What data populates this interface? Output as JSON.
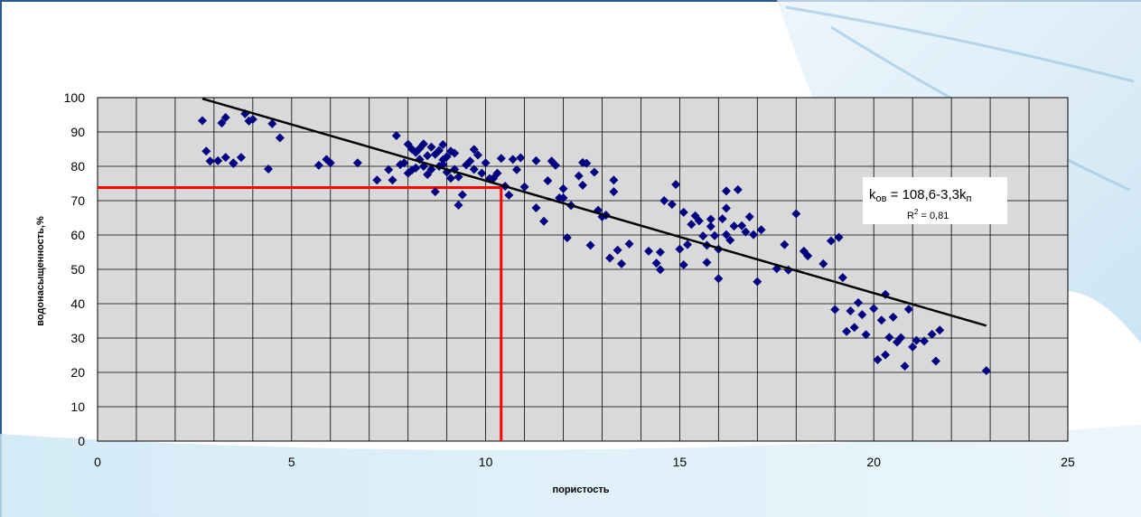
{
  "colors": {
    "plot_bg": "#d9d9d9",
    "grid": "#000000",
    "points": "#000080",
    "trend": "#000000",
    "marker_line": "#ff0000"
  },
  "chart_data": {
    "type": "scatter",
    "xlabel": "пористость",
    "ylabel": "водонасыщенность,%",
    "xlim": [
      0,
      25
    ],
    "ylim": [
      0,
      100
    ],
    "x_ticks": [
      "0",
      "5",
      "10",
      "15",
      "20",
      "25"
    ],
    "y_ticks": [
      "0",
      "10",
      "20",
      "30",
      "40",
      "50",
      "60",
      "70",
      "80",
      "90",
      "100"
    ],
    "grid": true,
    "legend": "none",
    "annotation": {
      "equation_label_prefix": "k",
      "equation_label_sub1": "ов",
      "equation_label_mid": " = 108,6-3,3k",
      "equation_label_sub2": "п",
      "r2_prefix": "R",
      "r2_sup": "2",
      "r2_suffix": " = 0,81"
    },
    "trendline": {
      "x": [
        2.7,
        22.9
      ],
      "y": [
        99.7,
        33.6
      ],
      "slope": -3.3,
      "intercept": 108.6
    },
    "marker_lines": {
      "horizontal": {
        "y": 73.8,
        "x_from": 0,
        "x_to": 10.4
      },
      "vertical": {
        "x": 10.4,
        "y_from": 73.8,
        "y_to": 0
      }
    },
    "series": [
      {
        "x": [
          2.7,
          2.8,
          2.9,
          3.1,
          3.2,
          3.3,
          3.3,
          3.5,
          3.5,
          3.7,
          3.8,
          3.9,
          4.0,
          4.4,
          4.5,
          4.7,
          5.7,
          5.9,
          6.0,
          6.7,
          7.2,
          7.5,
          7.6,
          7.7,
          7.8,
          7.9,
          8.0,
          8.0,
          8.1,
          8.1,
          8.2,
          8.2,
          8.3,
          8.3,
          8.4,
          8.4,
          8.5,
          8.5,
          8.6,
          8.6,
          8.7,
          8.7,
          8.8,
          8.8,
          8.9,
          8.9,
          9.0,
          9.0,
          9.1,
          9.1,
          9.2,
          9.2,
          9.3,
          9.4,
          9.5,
          9.6,
          9.7,
          9.8,
          9.9,
          10.0,
          10.2,
          10.3,
          10.4,
          10.5,
          10.6,
          10.7,
          10.8,
          10.9,
          11.0,
          11.3,
          11.5,
          11.6,
          11.7,
          11.9,
          12.0,
          12.1,
          12.2,
          12.4,
          12.5,
          12.6,
          12.7,
          12.8,
          12.9,
          13.0,
          13.1,
          13.2,
          13.3,
          13.4,
          13.5,
          13.7,
          14.2,
          14.4,
          14.5,
          14.6,
          14.8,
          14.9,
          15.0,
          15.1,
          15.2,
          15.3,
          15.4,
          15.5,
          15.6,
          15.7,
          15.7,
          15.8,
          15.9,
          16.0,
          16.1,
          16.2,
          16.2,
          16.3,
          16.4,
          16.5,
          16.7,
          16.8,
          16.9,
          17.0,
          17.5,
          17.7,
          17.8,
          18.0,
          18.2,
          18.7,
          18.9,
          19.0,
          19.2,
          19.3,
          19.4,
          19.5,
          19.6,
          19.7,
          19.8,
          20.0,
          20.1,
          20.2,
          20.3,
          20.4,
          20.5,
          20.6,
          20.7,
          20.8,
          20.9,
          21.0,
          21.1,
          21.3,
          21.5,
          21.6,
          21.7,
          22.9,
          15.8,
          16.2,
          12.0,
          13.3,
          8.9,
          10.1,
          11.3,
          9.3,
          14.5,
          16.0,
          19.1,
          20.3,
          17.1,
          15.1,
          12.5,
          18.3,
          16.6,
          9.7,
          11.8
        ],
        "y": [
          93.3,
          84.4,
          81.5,
          81.6,
          92.6,
          82.6,
          94.2,
          81.0,
          80.8,
          82.6,
          95.3,
          93.2,
          93.7,
          79.2,
          92.4,
          88.3,
          80.3,
          82.0,
          81.0,
          81.0,
          76.0,
          79.0,
          76.0,
          88.9,
          80.5,
          81.0,
          78.0,
          86.4,
          85.0,
          78.9,
          84.0,
          79.5,
          85.2,
          82.0,
          86.5,
          80.0,
          83.1,
          77.6,
          85.6,
          79.1,
          83.5,
          72.6,
          84.6,
          80.0,
          81.9,
          86.3,
          78.3,
          82.8,
          84.4,
          76.5,
          79.1,
          83.8,
          68.7,
          71.7,
          80.4,
          81.5,
          84.9,
          83.3,
          78.0,
          81.0,
          76.5,
          78.0,
          82.3,
          74.2,
          71.6,
          82.0,
          79.0,
          82.5,
          74.0,
          67.9,
          64.0,
          75.8,
          81.5,
          70.8,
          73.5,
          59.2,
          68.6,
          77.2,
          81.1,
          80.9,
          57.0,
          78.3,
          67.2,
          65.3,
          65.8,
          53.3,
          72.6,
          55.6,
          51.6,
          57.4,
          55.3,
          51.8,
          49.9,
          70.0,
          68.9,
          74.7,
          55.9,
          51.3,
          57.2,
          63.1,
          65.6,
          64.1,
          59.7,
          57.0,
          52.0,
          62.5,
          59.8,
          47.3,
          64.7,
          72.8,
          60.1,
          58.5,
          62.6,
          73.2,
          60.9,
          65.3,
          60.1,
          46.4,
          50.2,
          57.2,
          49.8,
          66.2,
          55.3,
          51.6,
          58.3,
          38.3,
          47.6,
          31.9,
          37.9,
          33.1,
          40.3,
          36.8,
          31.0,
          38.6,
          23.7,
          35.2,
          42.7,
          30.2,
          36.1,
          28.8,
          30.1,
          21.8,
          38.4,
          27.4,
          29.3,
          29.1,
          31.1,
          23.3,
          32.3,
          20.5,
          64.6,
          67.8,
          70.8,
          76.0,
          80.5,
          76.4,
          81.6,
          76.9,
          55.0,
          55.9,
          59.3,
          25.1,
          61.5,
          66.6,
          74.5,
          53.9,
          62.7,
          79.1,
          80.3
        ]
      }
    ]
  }
}
